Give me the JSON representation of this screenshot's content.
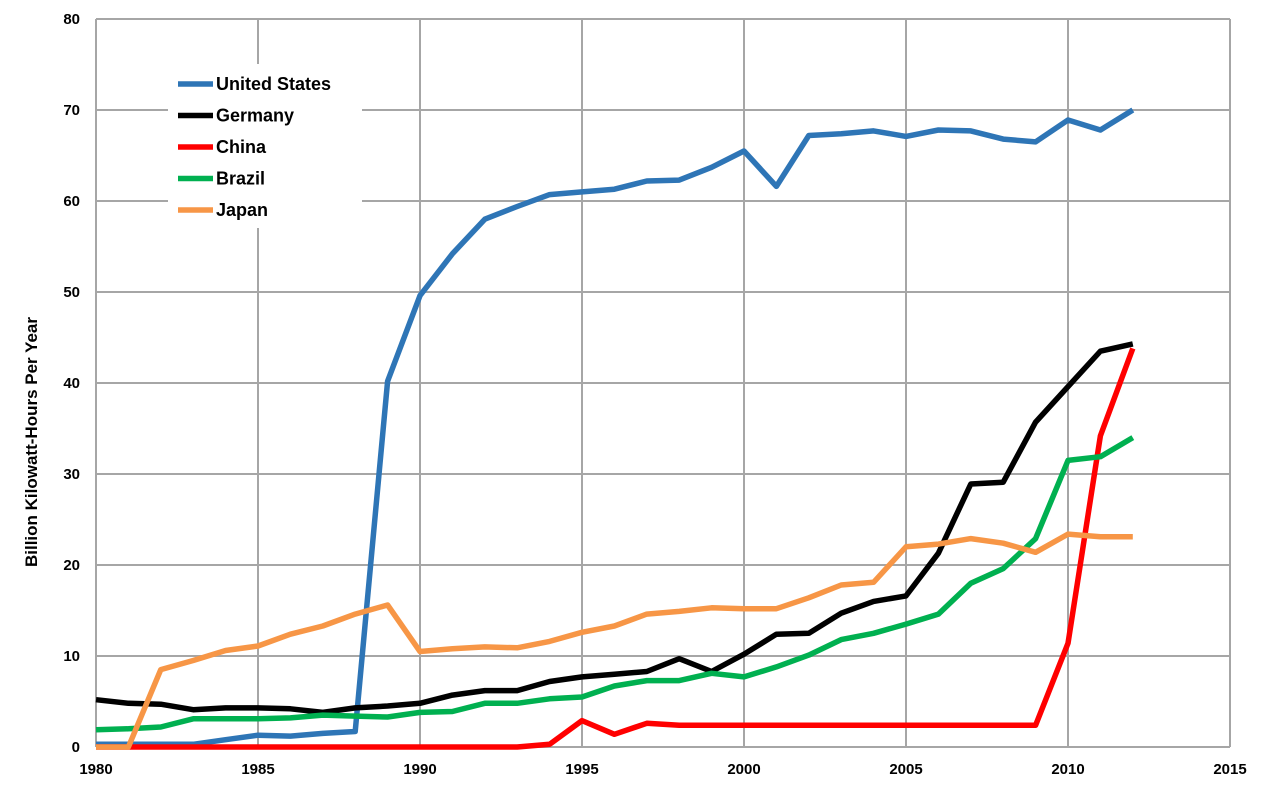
{
  "chart_data": {
    "type": "line",
    "title": "",
    "xlabel": "",
    "ylabel": "Billion Kilowatt-Hours Per Year",
    "xlim": [
      1980,
      2015
    ],
    "ylim": [
      0,
      80
    ],
    "x_ticks": [
      "1980",
      "1985",
      "1990",
      "1995",
      "2000",
      "2005",
      "2010",
      "2015"
    ],
    "y_ticks": [
      "0",
      "10",
      "20",
      "30",
      "40",
      "50",
      "60",
      "70",
      "80"
    ],
    "grid": true,
    "legend_position": "top-left",
    "x": [
      1980,
      1981,
      1982,
      1983,
      1984,
      1985,
      1986,
      1987,
      1988,
      1989,
      1990,
      1991,
      1992,
      1993,
      1994,
      1995,
      1996,
      1997,
      1998,
      1999,
      2000,
      2001,
      2002,
      2003,
      2004,
      2005,
      2006,
      2007,
      2008,
      2009,
      2010,
      2011,
      2012
    ],
    "series": [
      {
        "name": "United States",
        "color": "#2e75b6",
        "values": [
          0.3,
          0.3,
          0.3,
          0.3,
          0.8,
          1.3,
          1.2,
          1.5,
          1.7,
          40.2,
          49.6,
          54.2,
          58.0,
          59.4,
          60.7,
          61.0,
          61.3,
          62.2,
          62.3,
          63.7,
          65.5,
          61.6,
          67.2,
          67.4,
          67.7,
          67.1,
          67.8,
          67.7,
          66.8,
          66.5,
          68.9,
          67.8,
          70.0
        ]
      },
      {
        "name": "Germany",
        "color": "#000000",
        "values": [
          5.2,
          4.8,
          4.7,
          4.1,
          4.3,
          4.3,
          4.2,
          3.8,
          4.3,
          4.5,
          4.8,
          5.7,
          6.2,
          6.2,
          7.2,
          7.7,
          8.0,
          8.3,
          9.7,
          8.3,
          10.2,
          12.4,
          12.5,
          14.7,
          16.0,
          16.6,
          21.3,
          28.9,
          29.1,
          35.7,
          39.6,
          43.5,
          44.3
        ]
      },
      {
        "name": "China",
        "color": "#ff0000",
        "values": [
          0,
          0,
          0,
          0,
          0,
          0,
          0,
          0,
          0,
          0,
          0,
          0,
          0,
          0,
          0.3,
          2.9,
          1.4,
          2.6,
          2.4,
          2.4,
          2.4,
          2.4,
          2.4,
          2.4,
          2.4,
          2.4,
          2.4,
          2.4,
          2.4,
          2.4,
          11.4,
          34.2,
          43.8
        ]
      },
      {
        "name": "Brazil",
        "color": "#00b050",
        "values": [
          1.9,
          2.0,
          2.2,
          3.1,
          3.1,
          3.1,
          3.2,
          3.5,
          3.4,
          3.3,
          3.8,
          3.9,
          4.8,
          4.8,
          5.3,
          5.5,
          6.7,
          7.3,
          7.3,
          8.1,
          7.7,
          8.8,
          10.1,
          11.8,
          12.5,
          13.5,
          14.6,
          18.0,
          19.6,
          22.9,
          31.5,
          31.9,
          34.0
        ]
      },
      {
        "name": "Japan",
        "color": "#f79646",
        "values": [
          0.0,
          0.0,
          8.5,
          9.5,
          10.6,
          11.1,
          12.4,
          13.3,
          14.6,
          15.6,
          10.5,
          10.8,
          11.0,
          10.9,
          11.6,
          12.6,
          13.3,
          14.6,
          14.9,
          15.3,
          15.2,
          15.2,
          16.4,
          17.8,
          18.1,
          22.0,
          22.3,
          22.9,
          22.4,
          21.4,
          23.4,
          23.1,
          23.1
        ]
      }
    ]
  }
}
